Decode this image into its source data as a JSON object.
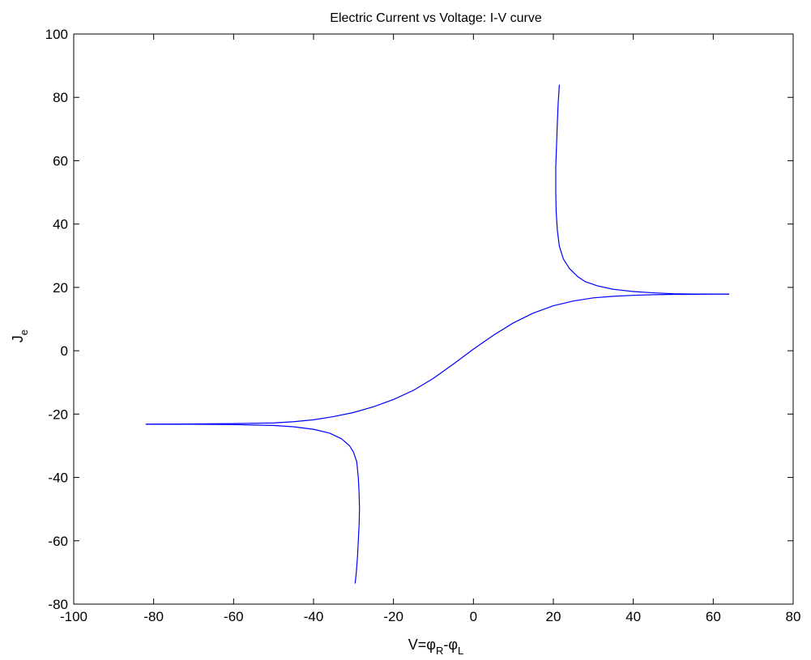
{
  "chart_data": {
    "type": "line",
    "title": "Electric Current vs Voltage: I-V curve",
    "xlabel": {
      "main": "V=",
      "phi1": "φ",
      "sub1": "R",
      "minus": "-",
      "phi2": "φ",
      "sub2": "L"
    },
    "ylabel": {
      "main": "J",
      "sub": "e"
    },
    "xlim": [
      -100,
      80
    ],
    "ylim": [
      -80,
      100
    ],
    "xticks": [
      -100,
      -80,
      -60,
      -40,
      -20,
      0,
      20,
      40,
      60,
      80
    ],
    "yticks": [
      -80,
      -60,
      -40,
      -20,
      0,
      20,
      40,
      60,
      80,
      100
    ],
    "grid": false,
    "line_color": "#0000ff",
    "series": [
      {
        "x": [
          -82,
          -70,
          -60,
          -50,
          -45,
          -40,
          -35,
          -30,
          -25,
          -20,
          -15,
          -10,
          -5,
          0,
          5,
          10,
          15,
          20,
          25,
          30,
          35,
          40,
          45,
          50,
          55,
          60,
          64
        ],
        "y": [
          -23.2,
          -23.1,
          -23.0,
          -22.8,
          -22.4,
          -21.8,
          -20.8,
          -19.5,
          -17.7,
          -15.4,
          -12.5,
          -8.7,
          -4.2,
          0.5,
          4.9,
          8.8,
          11.9,
          14.2,
          15.7,
          16.7,
          17.2,
          17.5,
          17.7,
          17.8,
          17.8,
          17.9,
          17.9
        ]
      },
      {
        "x": [
          -82,
          -70,
          -60,
          -50,
          -45,
          -40,
          -36,
          -33,
          -31,
          -30,
          -29.2,
          -28.8,
          -28.6,
          -28.5,
          -28.6,
          -28.8,
          -29.0,
          -29.3,
          -29.6
        ],
        "y": [
          -23.2,
          -23.2,
          -23.3,
          -23.6,
          -24.0,
          -24.8,
          -26.0,
          -27.8,
          -30.0,
          -32.0,
          -35.0,
          -40.0,
          -45.0,
          -50.0,
          -55.0,
          -60.0,
          -65.0,
          -70.0,
          -73.5
        ]
      },
      {
        "x": [
          21.5,
          21.2,
          21.0,
          20.8,
          20.6,
          20.6,
          20.7,
          21.0,
          21.5,
          22.5,
          24,
          26,
          28,
          31,
          35,
          40,
          45,
          50,
          55,
          60,
          64
        ],
        "y": [
          84,
          78,
          72,
          65,
          58,
          50,
          44,
          38,
          33,
          29,
          26,
          23.5,
          21.8,
          20.5,
          19.4,
          18.7,
          18.3,
          18.0,
          17.9,
          17.9,
          17.9
        ]
      }
    ]
  }
}
